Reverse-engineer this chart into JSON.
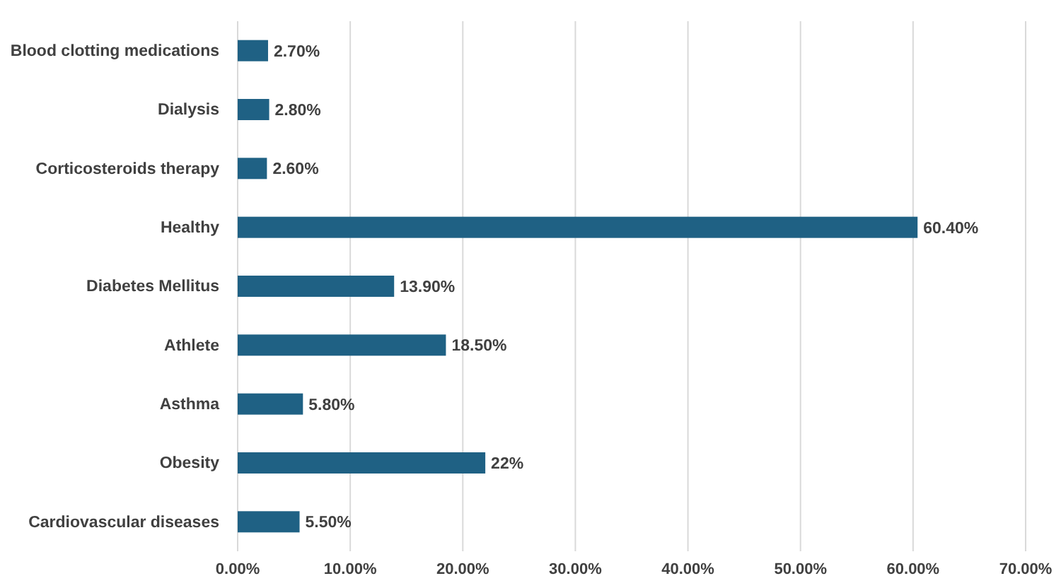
{
  "chart_data": {
    "type": "bar",
    "orientation": "horizontal",
    "categories": [
      "Blood clotting medications",
      "Dialysis",
      "Corticosteroids therapy",
      "Healthy",
      "Diabetes Mellitus",
      "Athlete",
      "Asthma",
      "Obesity",
      "Cardiovascular diseases"
    ],
    "values": [
      2.7,
      2.8,
      2.6,
      60.4,
      13.9,
      18.5,
      5.8,
      22,
      5.5
    ],
    "value_labels": [
      "2.70%",
      "2.80%",
      "2.60%",
      "60.40%",
      "13.90%",
      "18.50%",
      "5.80%",
      "22%",
      "5.50%"
    ],
    "color": "#1f6184",
    "xlim": [
      0,
      70
    ],
    "xticks": [
      {
        "value": 0,
        "label": "0.00%"
      },
      {
        "value": 10,
        "label": "10.00%"
      },
      {
        "value": 20,
        "label": "20.00%"
      },
      {
        "value": 30,
        "label": "30.00%"
      },
      {
        "value": 40,
        "label": "40.00%"
      },
      {
        "value": 50,
        "label": "50.00%"
      },
      {
        "value": 60,
        "label": "60.00%"
      },
      {
        "value": 70,
        "label": "70.00%"
      }
    ],
    "grid": "x"
  }
}
